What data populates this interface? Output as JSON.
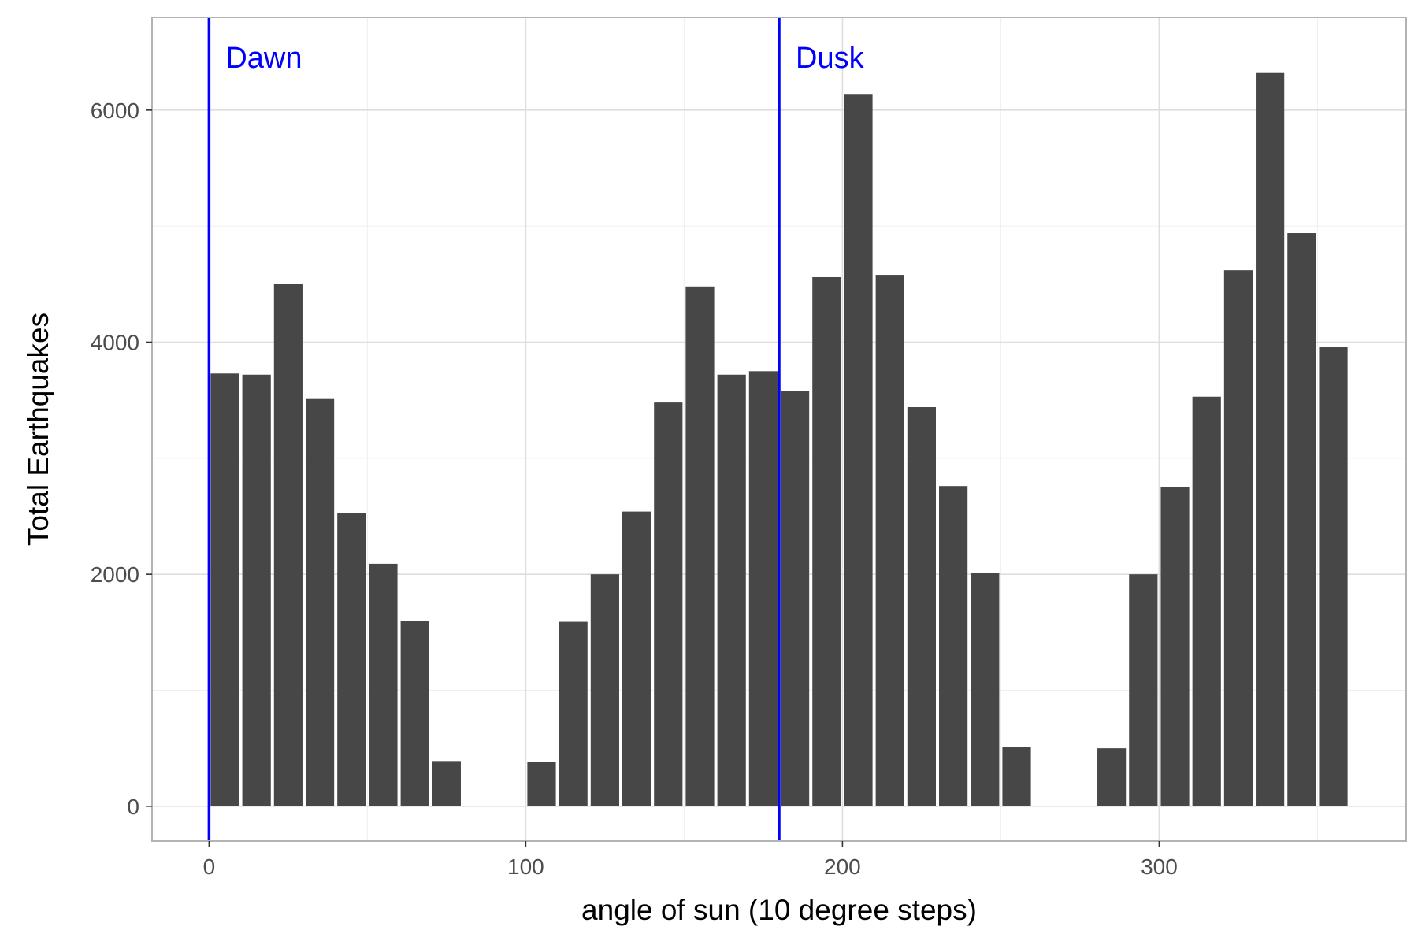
{
  "chart_data": {
    "type": "bar",
    "title": "",
    "xlabel": "angle of sun (10 degree steps)",
    "ylabel": "Total Earthquakes",
    "xlim": [
      -18,
      378
    ],
    "ylim": [
      -300,
      6800
    ],
    "x_ticks": [
      0,
      100,
      200,
      300
    ],
    "x_tick_labels": [
      "0",
      "100",
      "200",
      "300"
    ],
    "y_ticks": [
      0,
      2000,
      4000,
      6000
    ],
    "y_tick_labels": [
      "0",
      "2000",
      "4000",
      "6000"
    ],
    "grid": true,
    "legend": "none",
    "bar_width": 9,
    "bar_color": "#474747",
    "x": [
      5,
      15,
      25,
      35,
      45,
      55,
      65,
      75,
      85,
      95,
      105,
      115,
      125,
      135,
      145,
      155,
      165,
      175,
      185,
      195,
      205,
      215,
      225,
      235,
      245,
      255,
      265,
      275,
      285,
      295,
      305,
      315,
      325,
      335,
      345,
      355
    ],
    "values": [
      3730,
      3720,
      4500,
      3510,
      2530,
      2090,
      1600,
      390,
      0,
      0,
      380,
      1590,
      2000,
      2540,
      3480,
      4480,
      3720,
      3750,
      3580,
      4560,
      6140,
      4580,
      3440,
      2760,
      2010,
      510,
      0,
      0,
      500,
      2000,
      2750,
      3530,
      4620,
      6320,
      4940,
      3960
    ],
    "annotations": [
      {
        "x": 0,
        "label": "Dawn",
        "color": "#0000ff"
      },
      {
        "x": 180,
        "label": "Dusk",
        "color": "#0000ff"
      }
    ]
  },
  "colors": {
    "panel_border": "#b3b3b3",
    "grid_major": "#dedede",
    "grid_minor": "#efefef"
  }
}
